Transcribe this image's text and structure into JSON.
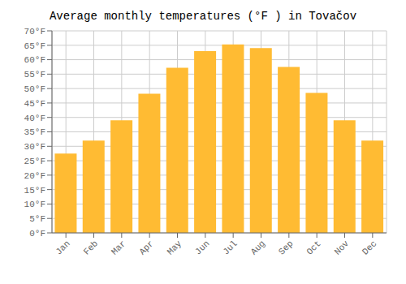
{
  "chart_data": {
    "type": "bar",
    "title": "Average monthly temperatures (°F ) in Tovačov",
    "categories": [
      "Jan",
      "Feb",
      "Mar",
      "Apr",
      "May",
      "Jun",
      "Jul",
      "Aug",
      "Sep",
      "Oct",
      "Nov",
      "Dec"
    ],
    "values": [
      27.5,
      32.0,
      39.0,
      48.2,
      57.2,
      63.0,
      65.3,
      64.0,
      57.5,
      48.5,
      39.0,
      32.0
    ],
    "color": "#FFBB33",
    "ylim": [
      0,
      70
    ],
    "yticks": [
      {
        "value": 0,
        "label": "0°F"
      },
      {
        "value": 5,
        "label": "5°F"
      },
      {
        "value": 10,
        "label": "10°F"
      },
      {
        "value": 15,
        "label": "15°F"
      },
      {
        "value": 20,
        "label": "20°F"
      },
      {
        "value": 25,
        "label": "25°F"
      },
      {
        "value": 30,
        "label": "30°F"
      },
      {
        "value": 35,
        "label": "35°F"
      },
      {
        "value": 40,
        "label": "40°F"
      },
      {
        "value": 45,
        "label": "45°F"
      },
      {
        "value": 50,
        "label": "50°F"
      },
      {
        "value": 55,
        "label": "55°F"
      },
      {
        "value": 60,
        "label": "60°F"
      },
      {
        "value": 65,
        "label": "65°F"
      },
      {
        "value": 70,
        "label": "70°F"
      }
    ],
    "grid": true
  }
}
